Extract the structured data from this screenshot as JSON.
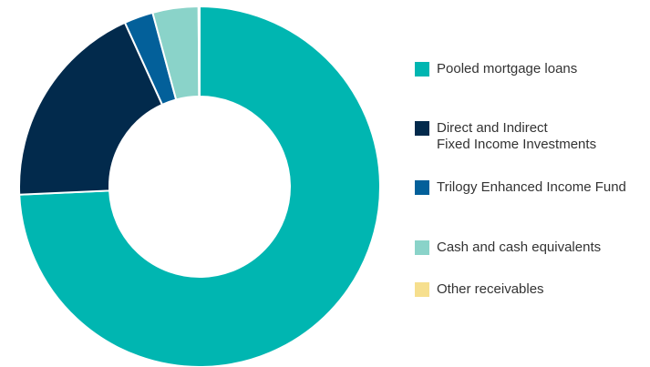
{
  "chart_data": {
    "type": "donut",
    "categories": [
      "Pooled mortgage loans",
      "Direct and Indirect\nFixed Income Investments",
      "Trilogy Enhanced Income Fund",
      "Cash and cash equivalents",
      "Other receivables"
    ],
    "values": [
      74.3,
      18.9,
      2.6,
      4.1,
      0.1
    ],
    "colors": [
      "#00b6b1",
      "#022a4c",
      "#03609a",
      "#8ad3c9",
      "#f6df8e"
    ],
    "legend": "right"
  }
}
